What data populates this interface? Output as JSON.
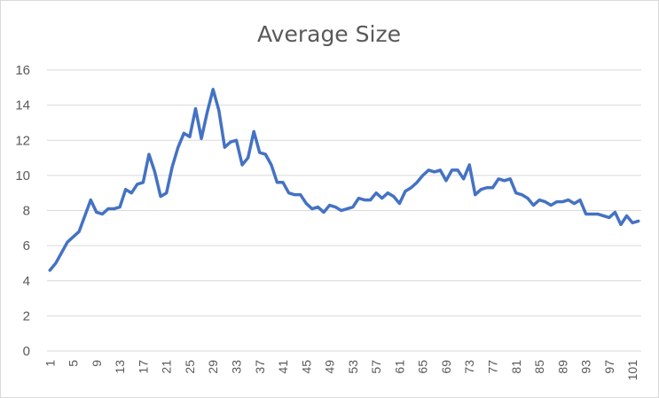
{
  "chart_data": {
    "type": "line",
    "title": "Average Size",
    "xlabel": "",
    "ylabel": "",
    "ylim": [
      0,
      16
    ],
    "yticks": [
      0,
      2,
      4,
      6,
      8,
      10,
      12,
      14,
      16
    ],
    "xticks": [
      1,
      5,
      9,
      13,
      17,
      21,
      25,
      29,
      33,
      37,
      41,
      45,
      49,
      53,
      57,
      61,
      65,
      69,
      73,
      77,
      81,
      85,
      89,
      93,
      97,
      101
    ],
    "grid": "horizontal",
    "legend": "none",
    "colors": {
      "line": "#4472c4",
      "grid": "#d9d9d9",
      "text": "#595959"
    },
    "series": [
      {
        "values": [
          4.6,
          5.0,
          5.6,
          6.2,
          6.5,
          6.8,
          7.7,
          8.6,
          7.9,
          7.8,
          8.1,
          8.1,
          8.2,
          9.2,
          9.0,
          9.5,
          9.6,
          11.2,
          10.2,
          8.8,
          9.0,
          10.5,
          11.6,
          12.4,
          12.2,
          13.8,
          12.1,
          13.6,
          14.9,
          13.7,
          11.6,
          11.9,
          12.0,
          10.6,
          11.0,
          12.5,
          11.3,
          11.2,
          10.6,
          9.6,
          9.6,
          9.0,
          8.9,
          8.9,
          8.4,
          8.1,
          8.2,
          7.9,
          8.3,
          8.2,
          8.0,
          8.1,
          8.2,
          8.7,
          8.6,
          8.6,
          9.0,
          8.7,
          9.0,
          8.8,
          8.4,
          9.1,
          9.3,
          9.6,
          10.0,
          10.3,
          10.2,
          10.3,
          9.7,
          10.3,
          10.3,
          9.8,
          10.6,
          8.9,
          9.2,
          9.3,
          9.3,
          9.8,
          9.7,
          9.8,
          9.0,
          8.9,
          8.7,
          8.3,
          8.6,
          8.5,
          8.3,
          8.5,
          8.5,
          8.6,
          8.4,
          8.6,
          7.8,
          7.8,
          7.8,
          7.7,
          7.6,
          7.9,
          7.2,
          7.7,
          7.3,
          7.4
        ]
      }
    ]
  }
}
